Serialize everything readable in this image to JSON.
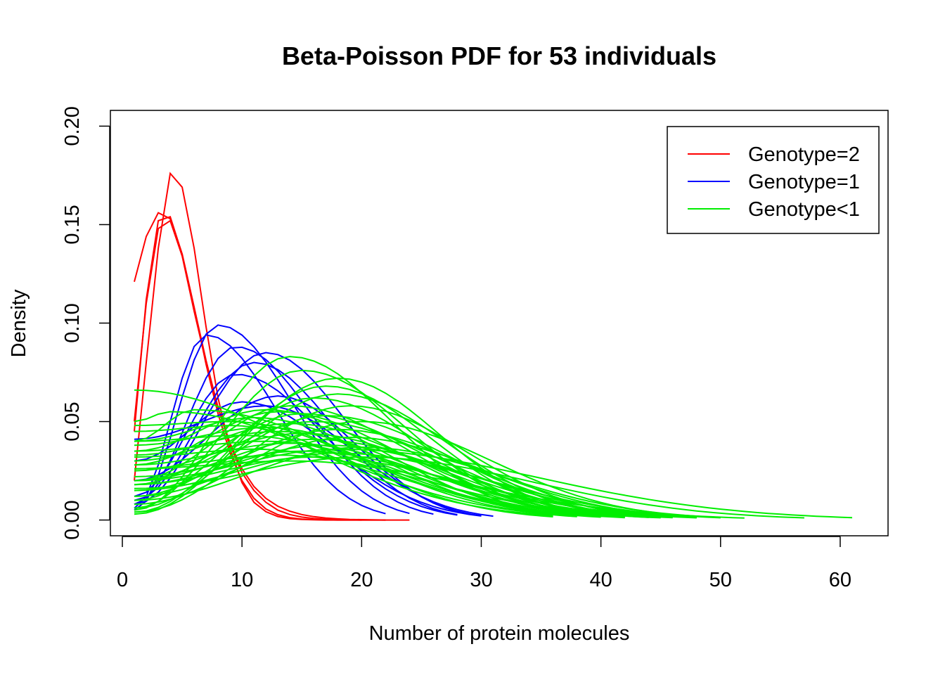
{
  "chart_data": {
    "type": "line",
    "title": "Beta-Poisson PDF for 53 individuals",
    "xlabel": "Number of protein molecules",
    "ylabel": "Density",
    "xlim": [
      -1,
      64
    ],
    "ylim": [
      -0.008,
      0.208
    ],
    "x_ticks": [
      0,
      10,
      20,
      30,
      40,
      50,
      60
    ],
    "y_ticks": [
      0.0,
      0.05,
      0.1,
      0.15,
      0.2
    ],
    "x_tick_labels": [
      "0",
      "10",
      "20",
      "30",
      "40",
      "50",
      "60"
    ],
    "y_tick_labels": [
      "0.00",
      "0.05",
      "0.10",
      "0.15",
      "0.20"
    ],
    "grid": false,
    "legend_position": "top-right",
    "legend": [
      {
        "label": "Genotype=2",
        "color": "#ff0000"
      },
      {
        "label": "Genotype=1",
        "color": "#0000ff"
      },
      {
        "label": "Genotype<1",
        "color": "#00ee00"
      }
    ],
    "groups": [
      {
        "name": "Genotype=2",
        "color": "#ff0000",
        "curves": [
          {
            "x": [
              1,
              2,
              3,
              4,
              5,
              6,
              7,
              8,
              9,
              10,
              11,
              12,
              13,
              14,
              15,
              16,
              17,
              18,
              19,
              20
            ],
            "y": [
              0.121,
              0.144,
              0.156,
              0.153,
              0.135,
              0.108,
              0.079,
              0.054,
              0.034,
              0.02,
              0.011,
              0.0056,
              0.0027,
              0.0012,
              0.0005,
              0.0002,
              0.0001,
              0,
              0,
              0
            ]
          },
          {
            "x": [
              1,
              2,
              3,
              4,
              5,
              6,
              7,
              8,
              9,
              10,
              11,
              12,
              13,
              14,
              15,
              16,
              17,
              18,
              19,
              20,
              22
            ],
            "y": [
              0.045,
              0.112,
              0.152,
              0.154,
              0.135,
              0.108,
              0.081,
              0.057,
              0.038,
              0.024,
              0.015,
              0.009,
              0.005,
              0.0028,
              0.0015,
              0.0008,
              0.0004,
              0.0002,
              0.0001,
              0,
              0
            ]
          },
          {
            "x": [
              1,
              2,
              3,
              4,
              5,
              6,
              7,
              8,
              9,
              10,
              11,
              12,
              13,
              14,
              15,
              16,
              17,
              18,
              20,
              22
            ],
            "y": [
              0.02,
              0.08,
              0.138,
              0.176,
              0.169,
              0.138,
              0.098,
              0.062,
              0.036,
              0.019,
              0.009,
              0.0042,
              0.0018,
              0.0007,
              0.0003,
              0.0001,
              0,
              0,
              0,
              0
            ]
          },
          {
            "x": [
              1,
              2,
              3,
              4,
              5,
              6,
              7,
              8,
              9,
              10,
              11,
              12,
              13,
              14,
              15,
              16,
              17,
              18,
              19,
              20,
              22,
              24
            ],
            "y": [
              0.05,
              0.11,
              0.148,
              0.152,
              0.134,
              0.106,
              0.08,
              0.057,
              0.039,
              0.026,
              0.017,
              0.011,
              0.007,
              0.0045,
              0.0028,
              0.0017,
              0.001,
              0.0006,
              0.0003,
              0.0002,
              0,
              0
            ]
          }
        ]
      },
      {
        "name": "Genotype=1",
        "color": "#0000ff",
        "curves": [
          {
            "peak_x": 7,
            "peak_y": 0.094,
            "start_y": 0.006,
            "end_x": 22
          },
          {
            "peak_x": 8,
            "peak_y": 0.099,
            "start_y": 0.005,
            "end_x": 24
          },
          {
            "peak_x": 9.5,
            "peak_y": 0.088,
            "start_y": 0.008,
            "end_x": 26
          },
          {
            "peak_x": 9.5,
            "peak_y": 0.074,
            "start_y": 0.012,
            "end_x": 28
          },
          {
            "peak_x": 11,
            "peak_y": 0.08,
            "start_y": 0.01,
            "end_x": 28
          },
          {
            "peak_x": 12,
            "peak_y": 0.085,
            "start_y": 0.008,
            "end_x": 29
          },
          {
            "peak_x": 13,
            "peak_y": 0.063,
            "start_y": 0.02,
            "end_x": 30
          },
          {
            "peak_x": 12,
            "peak_y": 0.058,
            "start_y": 0.041,
            "end_x": 31
          },
          {
            "peak_x": 10,
            "peak_y": 0.06,
            "start_y": 0.03,
            "end_x": 30
          }
        ]
      },
      {
        "name": "Genotype<1",
        "color": "#00ee00",
        "curves": [
          {
            "peak_x": 14,
            "peak_y": 0.083,
            "start_y": 0.005,
            "end_x": 36
          },
          {
            "peak_x": 15,
            "peak_y": 0.076,
            "start_y": 0.006,
            "end_x": 38
          },
          {
            "peak_x": 18,
            "peak_y": 0.072,
            "start_y": 0.003,
            "end_x": 40
          },
          {
            "peak_x": 17,
            "peak_y": 0.068,
            "start_y": 0.004,
            "end_x": 40
          },
          {
            "peak_x": 18,
            "peak_y": 0.064,
            "start_y": 0.006,
            "end_x": 42
          },
          {
            "peak_x": 16,
            "peak_y": 0.062,
            "start_y": 0.01,
            "end_x": 40
          },
          {
            "peak_x": 19,
            "peak_y": 0.058,
            "start_y": 0.004,
            "end_x": 44
          },
          {
            "peak_x": 14,
            "peak_y": 0.058,
            "start_y": 0.02,
            "end_x": 40
          },
          {
            "peak_x": 12,
            "peak_y": 0.056,
            "start_y": 0.035,
            "end_x": 38
          },
          {
            "peak_x": 13,
            "peak_y": 0.055,
            "start_y": 0.028,
            "end_x": 40
          },
          {
            "peak_x": 15,
            "peak_y": 0.054,
            "start_y": 0.018,
            "end_x": 42
          },
          {
            "peak_x": 17,
            "peak_y": 0.053,
            "start_y": 0.012,
            "end_x": 44
          },
          {
            "peak_x": 11,
            "peak_y": 0.052,
            "start_y": 0.04,
            "end_x": 38
          },
          {
            "peak_x": 16,
            "peak_y": 0.05,
            "start_y": 0.02,
            "end_x": 44
          },
          {
            "peak_x": 20,
            "peak_y": 0.05,
            "start_y": 0.008,
            "end_x": 48
          },
          {
            "peak_x": 14,
            "peak_y": 0.049,
            "start_y": 0.03,
            "end_x": 42
          },
          {
            "peak_x": 9,
            "peak_y": 0.048,
            "start_y": 0.045,
            "end_x": 36
          },
          {
            "peak_x": 12,
            "peak_y": 0.047,
            "start_y": 0.038,
            "end_x": 40
          },
          {
            "peak_x": 18,
            "peak_y": 0.046,
            "start_y": 0.015,
            "end_x": 46
          },
          {
            "peak_x": 13,
            "peak_y": 0.045,
            "start_y": 0.033,
            "end_x": 42
          },
          {
            "peak_x": 15,
            "peak_y": 0.044,
            "start_y": 0.025,
            "end_x": 44
          },
          {
            "peak_x": 10,
            "peak_y": 0.043,
            "start_y": 0.04,
            "end_x": 40
          },
          {
            "peak_x": 19,
            "peak_y": 0.042,
            "start_y": 0.012,
            "end_x": 48
          },
          {
            "peak_x": 16,
            "peak_y": 0.041,
            "start_y": 0.02,
            "end_x": 46
          },
          {
            "peak_x": 12,
            "peak_y": 0.04,
            "start_y": 0.035,
            "end_x": 42
          },
          {
            "peak_x": 14,
            "peak_y": 0.039,
            "start_y": 0.028,
            "end_x": 44
          },
          {
            "peak_x": 17,
            "peak_y": 0.038,
            "start_y": 0.018,
            "end_x": 48
          },
          {
            "peak_x": 20,
            "peak_y": 0.037,
            "start_y": 0.01,
            "end_x": 50
          },
          {
            "peak_x": 11,
            "peak_y": 0.036,
            "start_y": 0.032,
            "end_x": 42
          },
          {
            "peak_x": 15,
            "peak_y": 0.035,
            "start_y": 0.022,
            "end_x": 46
          },
          {
            "peak_x": 18,
            "peak_y": 0.034,
            "start_y": 0.015,
            "end_x": 50
          },
          {
            "peak_x": 13,
            "peak_y": 0.033,
            "start_y": 0.026,
            "end_x": 45
          },
          {
            "peak_x": 16,
            "peak_y": 0.032,
            "start_y": 0.018,
            "end_x": 48
          },
          {
            "peak_x": 9,
            "peak_y": 0.05,
            "start_y": 0.048,
            "end_x": 38
          },
          {
            "peak_x": 4,
            "peak_y": 0.055,
            "start_y": 0.05,
            "end_x": 38
          },
          {
            "peak_x": 6,
            "peak_y": 0.056,
            "start_y": 0.04,
            "end_x": 40
          },
          {
            "peak_x": 1,
            "peak_y": 0.066,
            "start_y": 0.066,
            "end_x": 36
          },
          {
            "peak_x": 20,
            "peak_y": 0.032,
            "start_y": 0.016,
            "end_x": 57
          },
          {
            "peak_x": 18,
            "peak_y": 0.036,
            "start_y": 0.02,
            "end_x": 61
          },
          {
            "peak_x": 14,
            "peak_y": 0.03,
            "start_y": 0.026,
            "end_x": 52
          }
        ]
      }
    ]
  }
}
